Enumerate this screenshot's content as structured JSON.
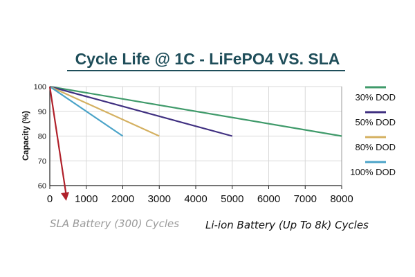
{
  "chart_data": {
    "type": "line",
    "title": "Cycle Life @ 1C - LiFePO4 VS. SLA",
    "ylabel": "Capacity (%)",
    "xlim": [
      0,
      8000
    ],
    "ylim": [
      60,
      100
    ],
    "xticks": [
      "0",
      "1000",
      "2000",
      "3000",
      "4000",
      "5000",
      "6000",
      "7000",
      "8000"
    ],
    "yticks": [
      "100",
      "90",
      "80",
      "70",
      "60"
    ],
    "grid": true,
    "legend_position": "right",
    "series": [
      {
        "name": "30% DOD",
        "color": "#3f9a6a",
        "x": [
          0,
          8000
        ],
        "y": [
          100,
          80
        ]
      },
      {
        "name": "50% DOD",
        "color": "#3f2f80",
        "x": [
          0,
          5000
        ],
        "y": [
          100,
          80
        ]
      },
      {
        "name": "80% DOD",
        "color": "#d4b060",
        "x": [
          0,
          3000
        ],
        "y": [
          100,
          80
        ]
      },
      {
        "name": "100% DOD",
        "color": "#4aa3c8",
        "x": [
          0,
          2000
        ],
        "y": [
          100,
          80
        ]
      }
    ],
    "sla_line": {
      "color": "#b0202a",
      "x": [
        0,
        450
      ],
      "y": [
        100,
        60
      ]
    },
    "captions": {
      "sla": "SLA Battery (300) Cycles",
      "liion": "Li-ion Battery (Up To 8k) Cycles"
    }
  }
}
